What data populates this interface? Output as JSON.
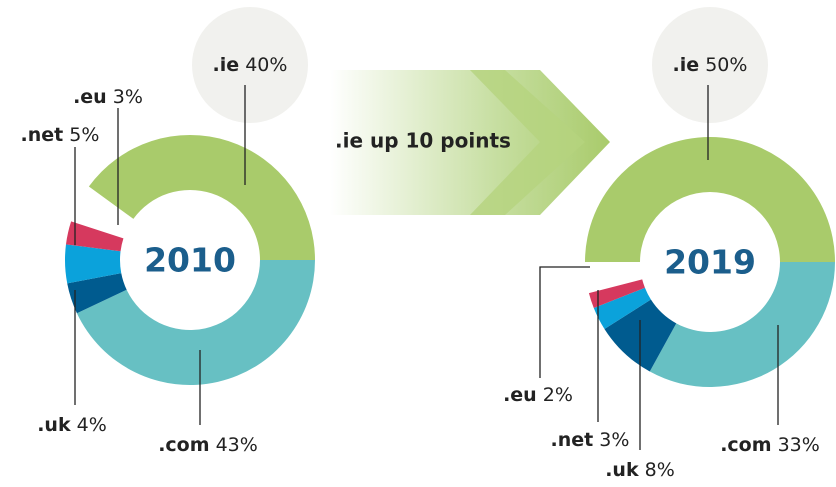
{
  "chart_data": [
    {
      "type": "donut",
      "title": "2010",
      "categories": [
        ".ie",
        ".com",
        ".uk",
        ".net",
        ".eu"
      ],
      "values": [
        40,
        43,
        4,
        5,
        3
      ],
      "value_labels": [
        "40%",
        "43%",
        "4%",
        "5%",
        "3%"
      ],
      "colors": [
        "#a9cb6b",
        "#67c0c3",
        "#005b8f",
        "#0ba2db",
        "#d6395e"
      ]
    },
    {
      "type": "donut",
      "title": "2019",
      "categories": [
        ".ie",
        ".com",
        ".uk",
        ".net",
        ".eu"
      ],
      "values": [
        50,
        33,
        8,
        3,
        2
      ],
      "value_labels": [
        "50%",
        "33%",
        "8%",
        "3%",
        "2%"
      ],
      "colors": [
        "#a9cb6b",
        "#67c0c3",
        "#005b8f",
        "#0ba2db",
        "#d6395e"
      ]
    }
  ],
  "annotation": ".ie up 10 points"
}
